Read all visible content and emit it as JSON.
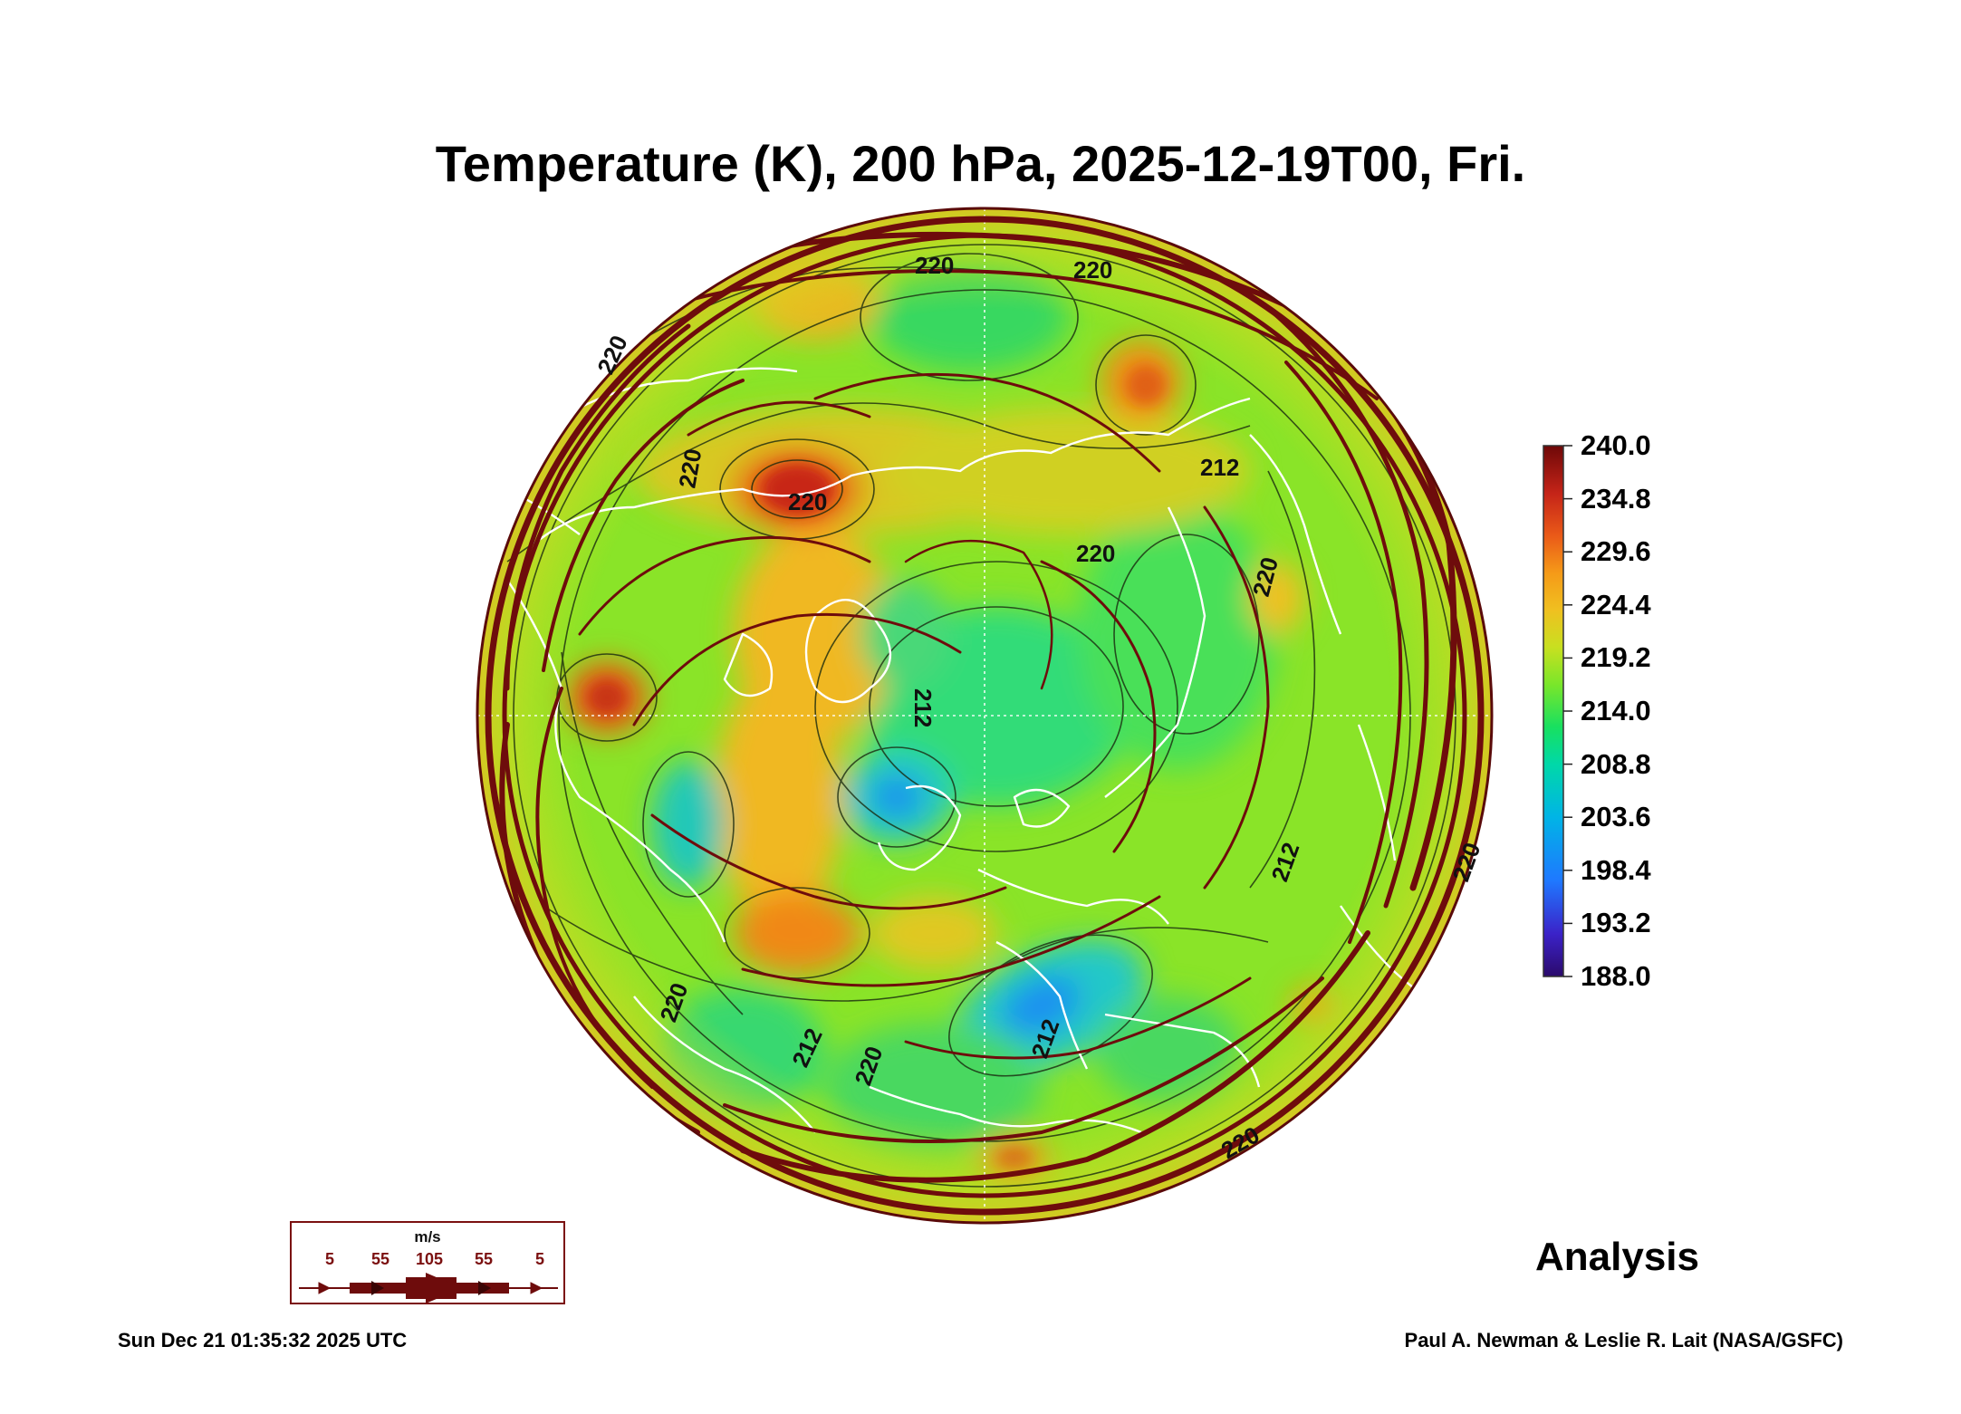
{
  "title": "Temperature (K), 200 hPa, 2025-12-19T00, Fri.",
  "colorbar": {
    "labels": [
      "240.0",
      "234.8",
      "229.6",
      "224.4",
      "219.2",
      "214.0",
      "208.8",
      "203.6",
      "198.4",
      "193.2",
      "188.0"
    ],
    "min": 188.0,
    "max": 240.0,
    "colors": [
      "#2b0a6b",
      "#3b22c8",
      "#1f78ff",
      "#00b4e6",
      "#00d8a8",
      "#18e060",
      "#7ae62a",
      "#c8e020",
      "#f0c020",
      "#f59a18",
      "#ea5a18",
      "#c52418",
      "#6e0808"
    ]
  },
  "contour_labels": [
    "220",
    "220",
    "220",
    "220",
    "220",
    "220",
    "220",
    "220",
    "212",
    "212",
    "212",
    "212",
    "212",
    "220",
    "220",
    "220"
  ],
  "wind_legend": {
    "unit": "m/s",
    "values": [
      "5",
      "55",
      "105",
      "55",
      "5"
    ]
  },
  "analysis_label": "Analysis",
  "timestamp": "Sun Dec 21 01:35:32 2025 UTC",
  "credit": "Paul A. Newman & Leslie R. Lait (NASA/GSFC)"
}
